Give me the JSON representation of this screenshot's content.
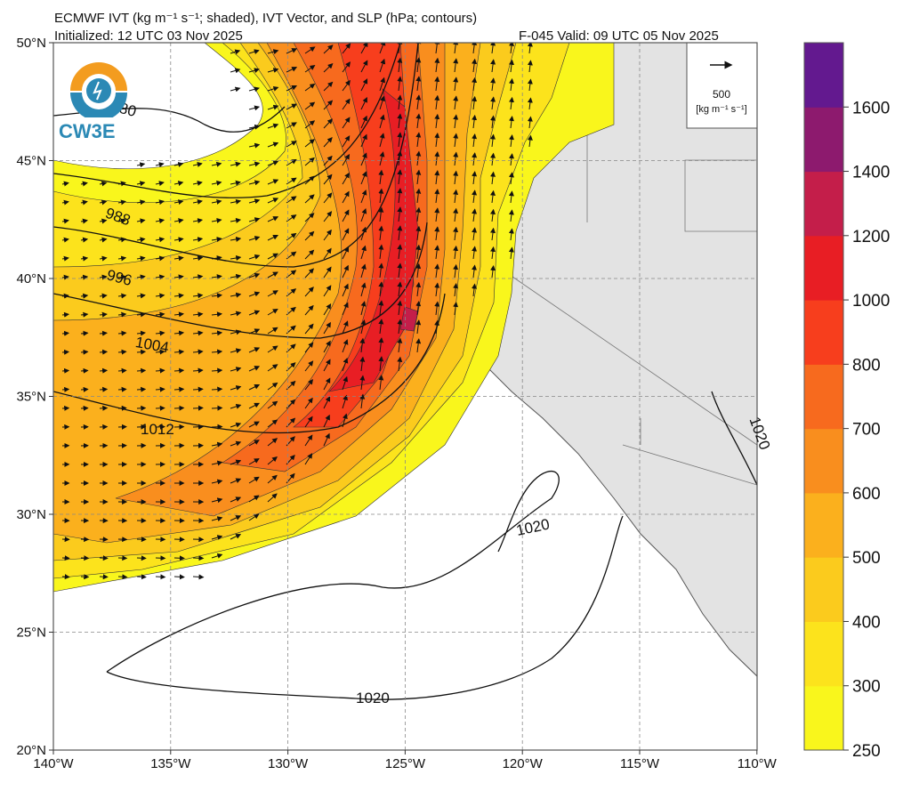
{
  "header": {
    "title": "ECMWF IVT (kg m⁻¹ s⁻¹; shaded), IVT Vector, and SLP (hPa; contours)",
    "initialized": "Initialized: 12 UTC 03 Nov 2025",
    "valid": "F-045  Valid: 09 UTC 05 Nov 2025"
  },
  "logo": {
    "text": "CW3E"
  },
  "reference_vector": {
    "value": "500",
    "units": "[kg m⁻¹ s⁻¹]"
  },
  "axes": {
    "lat_ticks": [
      "50°N",
      "45°N",
      "40°N",
      "35°N",
      "30°N",
      "25°N",
      "20°N"
    ],
    "lon_ticks": [
      "140°W",
      "135°W",
      "130°W",
      "125°W",
      "120°W",
      "115°W",
      "110°W"
    ]
  },
  "slp_contour_labels": [
    "980",
    "988",
    "996",
    "1004",
    "1012",
    "1020",
    "1020",
    "1020",
    "1020"
  ],
  "colorbar": {
    "labels": [
      "250",
      "300",
      "400",
      "500",
      "600",
      "700",
      "800",
      "1000",
      "1200",
      "1400",
      "1600"
    ],
    "colors": [
      "#f9f61c",
      "#fce31c",
      "#fbcb1d",
      "#fbb01d",
      "#f98e1e",
      "#f76a1e",
      "#f73e1d",
      "#e81e24",
      "#c41e4a",
      "#8d1a6e",
      "#63198f"
    ]
  }
}
